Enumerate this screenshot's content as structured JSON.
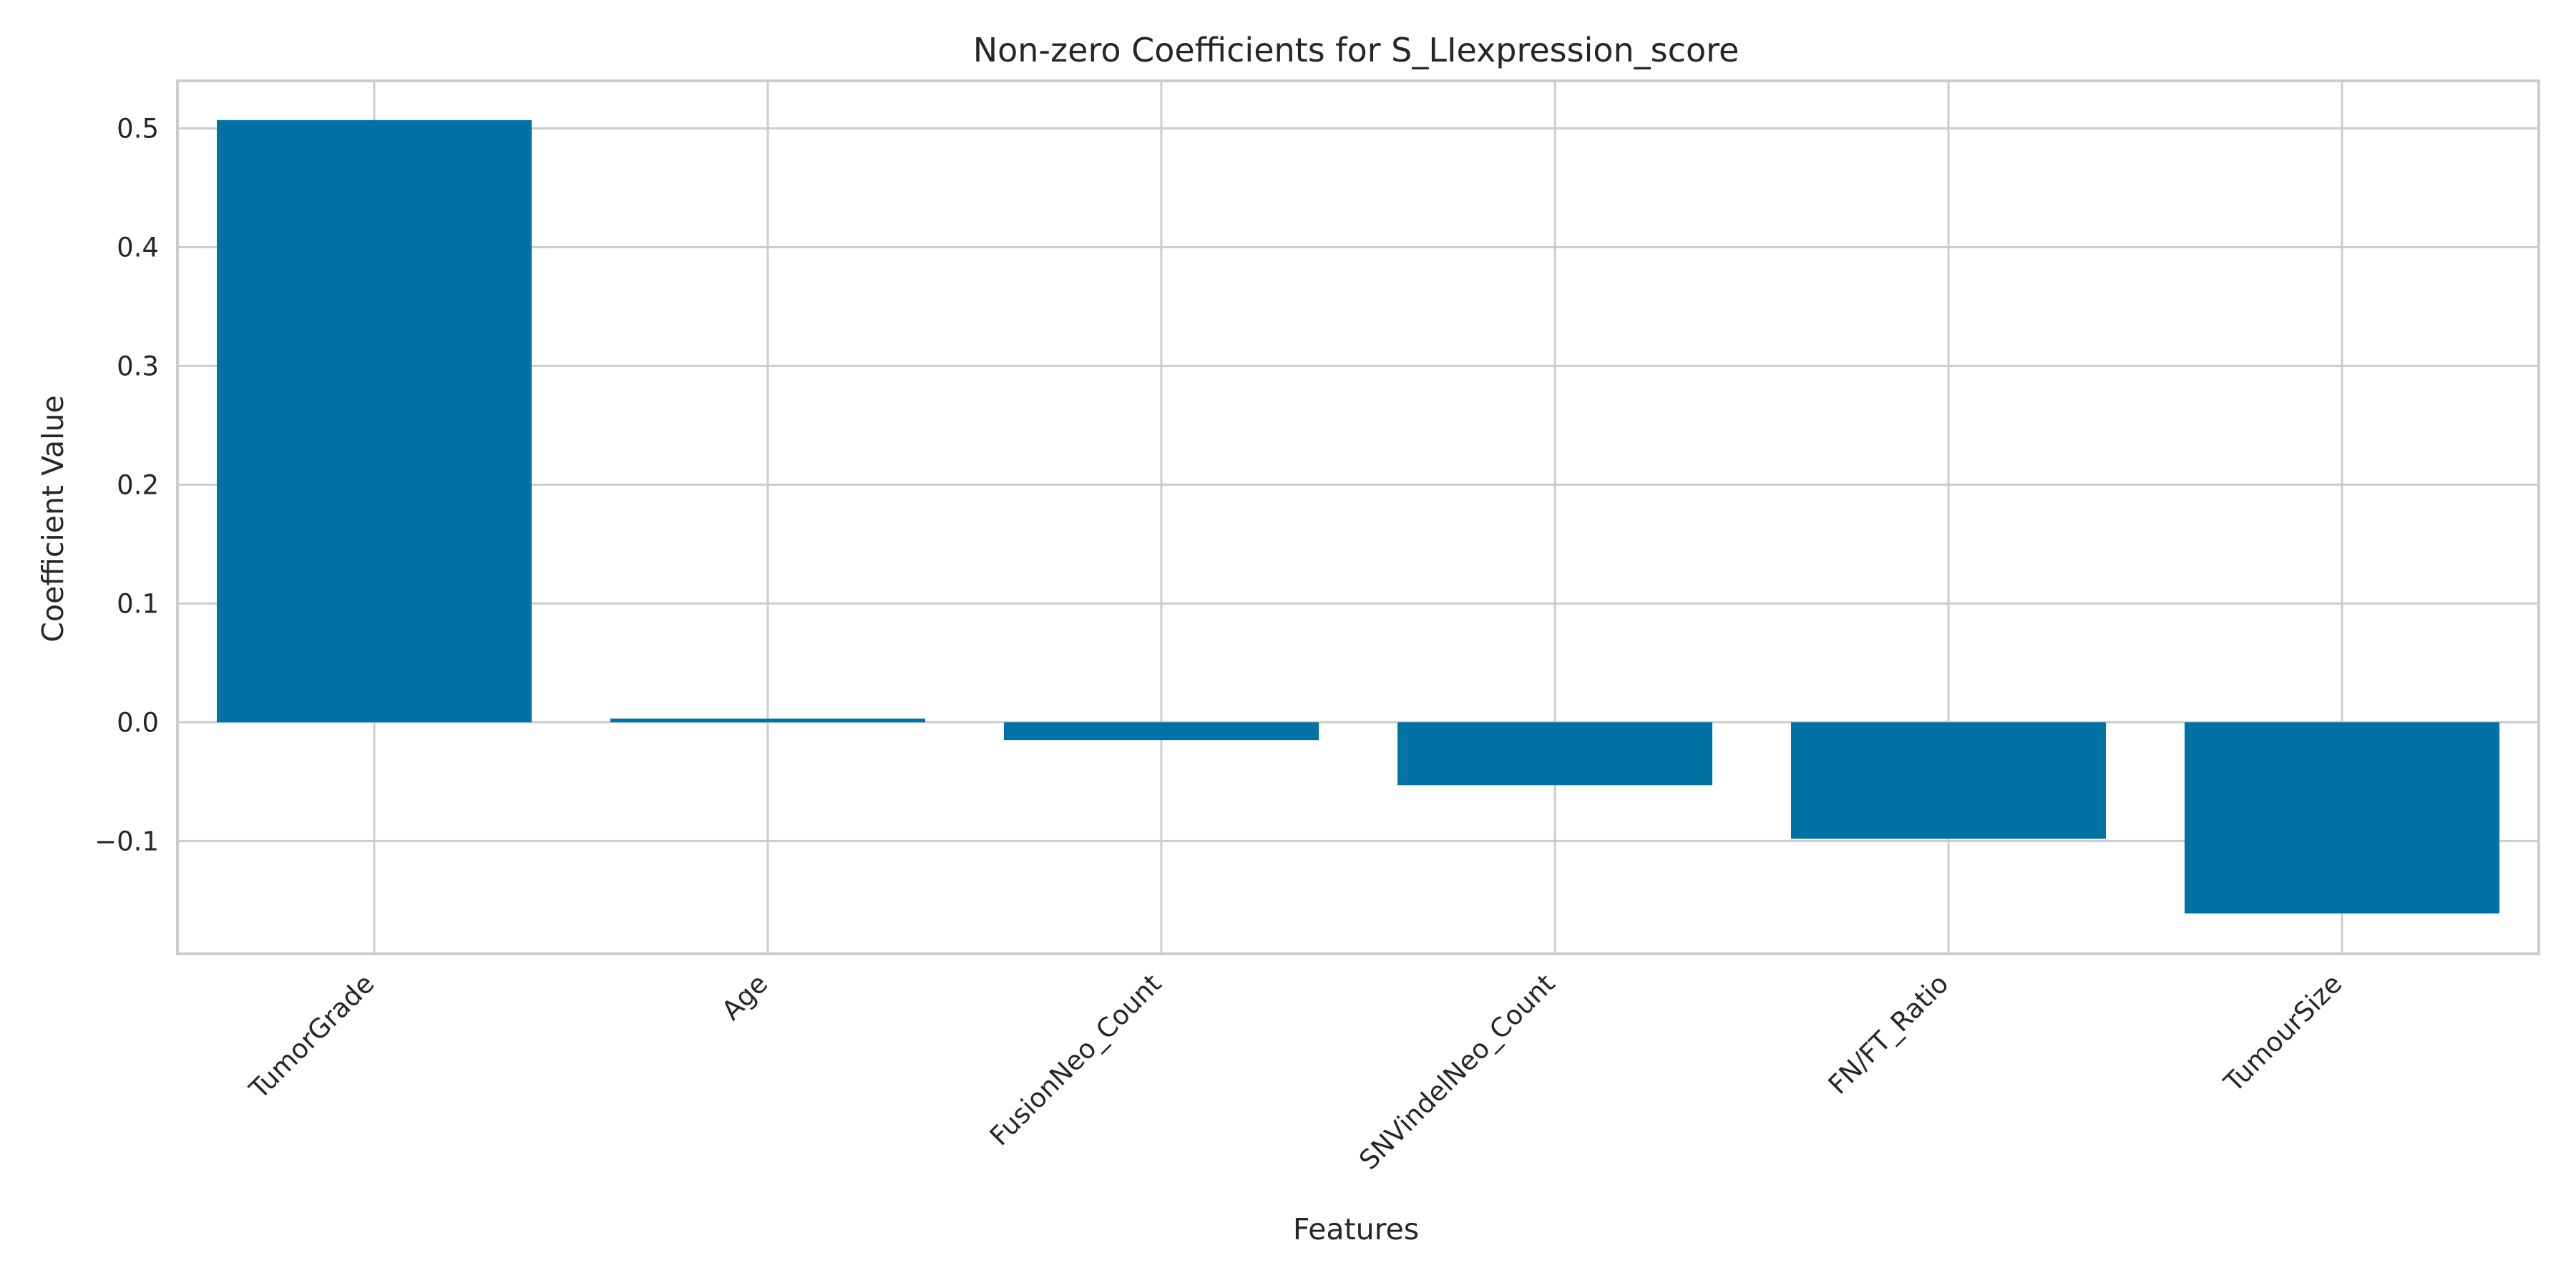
{
  "chart_data": {
    "type": "bar",
    "title": "Non-zero Coefficients for S_LIexpression_score",
    "xlabel": "Features",
    "ylabel": "Coefficient Value",
    "categories": [
      "TumorGrade",
      "Age",
      "FusionNeo_Count",
      "SNVindelNeo_Count",
      "FN/FT_Ratio",
      "TumourSize"
    ],
    "values": [
      0.507,
      0.003,
      -0.015,
      -0.053,
      -0.098,
      -0.161
    ],
    "ylim": [
      -0.195,
      0.54
    ],
    "yticks": [
      -0.1,
      0.0,
      0.1,
      0.2,
      0.3,
      0.4,
      0.5
    ],
    "ytick_labels": [
      "−0.1",
      "0.0",
      "0.1",
      "0.2",
      "0.3",
      "0.4",
      "0.5"
    ],
    "grid": true,
    "bar_color": "#0072a3",
    "legend": "none"
  }
}
